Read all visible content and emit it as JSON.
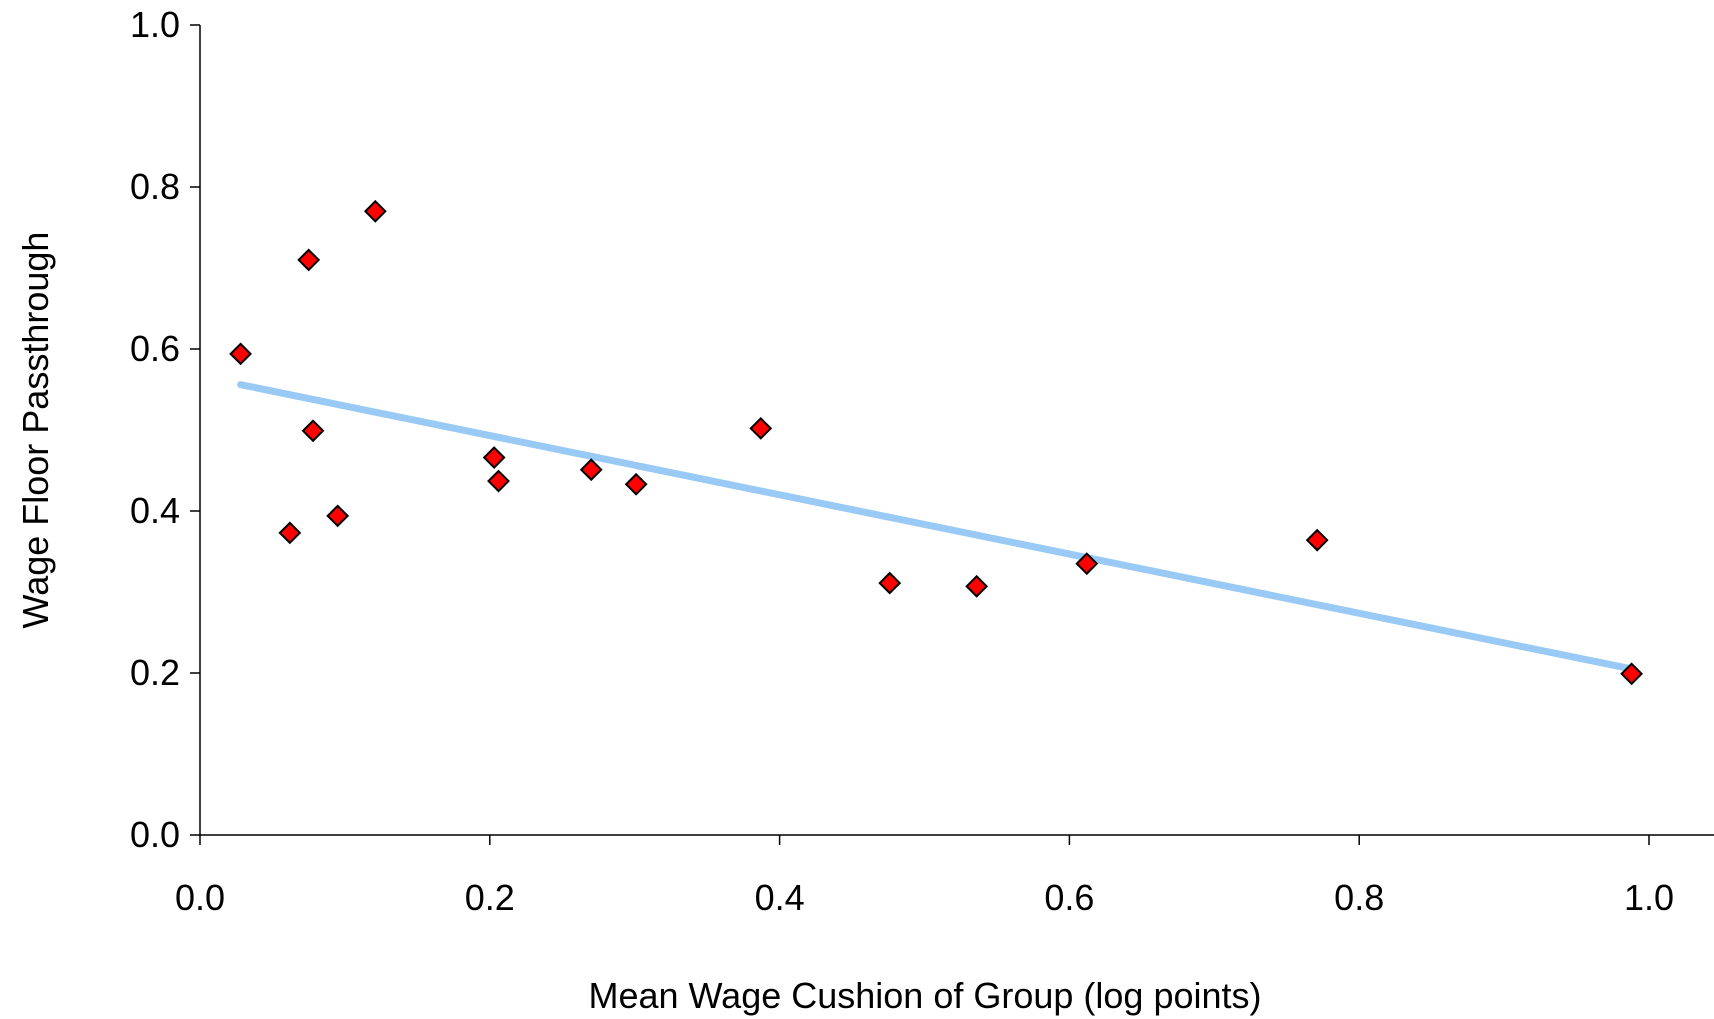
{
  "chart_data": {
    "type": "scatter",
    "title": "",
    "xlabel": "Mean Wage Cushion of Group (log points)",
    "ylabel": "Wage Floor Passthrough",
    "xlim": [
      0.0,
      1.05
    ],
    "ylim": [
      0.0,
      1.0
    ],
    "xticks": [
      "0.0",
      "0.2",
      "0.4",
      "0.6",
      "0.8",
      "1.0"
    ],
    "yticks": [
      "0.0",
      "0.2",
      "0.4",
      "0.6",
      "0.8",
      "1.0"
    ],
    "grid": false,
    "legend": "none",
    "series": [
      {
        "kind": "points",
        "marker": "diamond",
        "color": "#ff0000",
        "points": [
          {
            "x": 0.028,
            "y": 0.594
          },
          {
            "x": 0.062,
            "y": 0.373
          },
          {
            "x": 0.075,
            "y": 0.71
          },
          {
            "x": 0.078,
            "y": 0.499
          },
          {
            "x": 0.095,
            "y": 0.394
          },
          {
            "x": 0.121,
            "y": 0.77
          },
          {
            "x": 0.203,
            "y": 0.466
          },
          {
            "x": 0.206,
            "y": 0.437
          },
          {
            "x": 0.27,
            "y": 0.451
          },
          {
            "x": 0.301,
            "y": 0.433
          },
          {
            "x": 0.387,
            "y": 0.502
          },
          {
            "x": 0.476,
            "y": 0.311
          },
          {
            "x": 0.536,
            "y": 0.307
          },
          {
            "x": 0.612,
            "y": 0.335
          },
          {
            "x": 0.771,
            "y": 0.364
          },
          {
            "x": 0.988,
            "y": 0.199
          }
        ]
      },
      {
        "kind": "trendline",
        "color": "#99c9f5",
        "points": [
          {
            "x": 0.028,
            "y": 0.556
          },
          {
            "x": 0.988,
            "y": 0.205
          }
        ]
      }
    ]
  }
}
